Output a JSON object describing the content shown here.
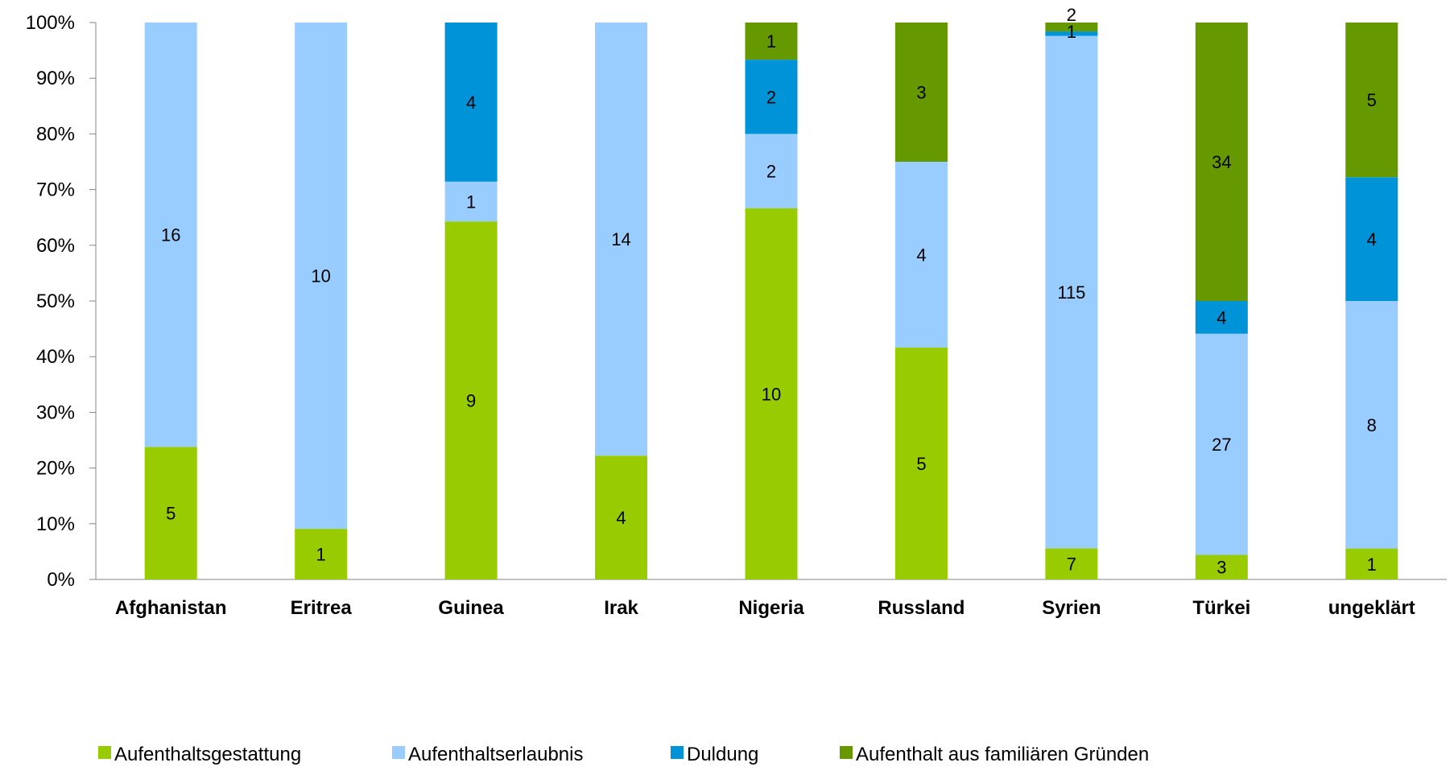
{
  "chart_data": {
    "type": "bar",
    "stacked": "percent",
    "categories": [
      "Afghanistan",
      "Eritrea",
      "Guinea",
      "Irak",
      "Nigeria",
      "Russland",
      "Syrien",
      "Türkei",
      "ungeklärt"
    ],
    "series": [
      {
        "name": "Aufenthaltsgestattung",
        "color": "#99cc00",
        "values": [
          5,
          1,
          9,
          4,
          10,
          5,
          7,
          3,
          1
        ]
      },
      {
        "name": "Aufenthaltserlaubnis",
        "color": "#99ccff",
        "values": [
          16,
          10,
          1,
          14,
          2,
          4,
          115,
          27,
          8
        ]
      },
      {
        "name": "Duldung",
        "color": "#0093d8",
        "values": [
          0,
          0,
          4,
          0,
          2,
          0,
          1,
          4,
          4
        ]
      },
      {
        "name": "Aufenthalt aus familiären Gründen",
        "color": "#669900",
        "values": [
          0,
          0,
          0,
          0,
          1,
          3,
          2,
          34,
          5
        ]
      }
    ],
    "y_ticks": [
      "0%",
      "10%",
      "20%",
      "30%",
      "40%",
      "50%",
      "60%",
      "70%",
      "80%",
      "90%",
      "100%"
    ],
    "ylim": [
      0,
      100
    ],
    "grid": false,
    "legend_position": "bottom",
    "title": "",
    "xlabel": "",
    "ylabel": ""
  }
}
